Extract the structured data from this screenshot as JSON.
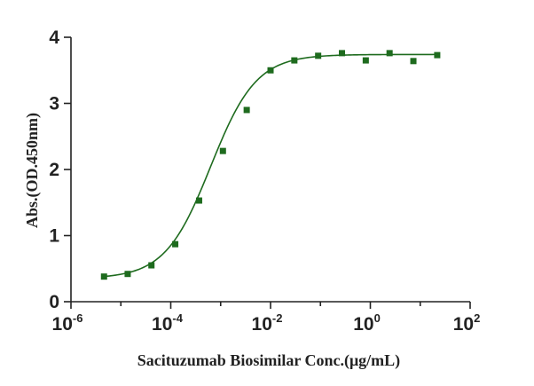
{
  "chart_data": {
    "type": "scatter",
    "title": "",
    "xlabel": "Sacituzumab Biosimilar Conc.(μg/mL)",
    "ylabel": "Abs.(OD.450nm)",
    "x_scale": "log10",
    "xlim": [
      1e-06,
      100
    ],
    "ylim": [
      0,
      4
    ],
    "x_ticks": [
      {
        "base": "10",
        "exp": "-6",
        "value": 1e-06
      },
      {
        "base": "10",
        "exp": "-4",
        "value": 0.0001
      },
      {
        "base": "10",
        "exp": "-2",
        "value": 0.01
      },
      {
        "base": "10",
        "exp": "0",
        "value": 1
      },
      {
        "base": "10",
        "exp": "2",
        "value": 100
      }
    ],
    "y_ticks": [
      "0",
      "1",
      "2",
      "3",
      "4"
    ],
    "colors": {
      "series": "#1e6b1e",
      "axis": "#222222"
    },
    "series": [
      {
        "name": "Sacituzumab Biosimilar",
        "marker": "square",
        "points": [
          {
            "x": 4.6e-06,
            "y": 0.38
          },
          {
            "x": 1.37e-05,
            "y": 0.42
          },
          {
            "x": 4.1e-05,
            "y": 0.55
          },
          {
            "x": 0.000123,
            "y": 0.87
          },
          {
            "x": 0.00037,
            "y": 1.53
          },
          {
            "x": 0.00111,
            "y": 2.28
          },
          {
            "x": 0.00333,
            "y": 2.9
          },
          {
            "x": 0.01,
            "y": 3.5
          },
          {
            "x": 0.03,
            "y": 3.65
          },
          {
            "x": 0.09,
            "y": 3.72
          },
          {
            "x": 0.27,
            "y": 3.76
          },
          {
            "x": 0.81,
            "y": 3.65
          },
          {
            "x": 2.43,
            "y": 3.76
          },
          {
            "x": 7.29,
            "y": 3.64
          },
          {
            "x": 21.9,
            "y": 3.73
          }
        ],
        "fit": {
          "type": "4PL",
          "bottom": 0.35,
          "top": 3.74,
          "ec50": 0.00063,
          "hill": 0.95,
          "x_range": [
            4.6e-06,
            21.9
          ]
        }
      }
    ]
  }
}
